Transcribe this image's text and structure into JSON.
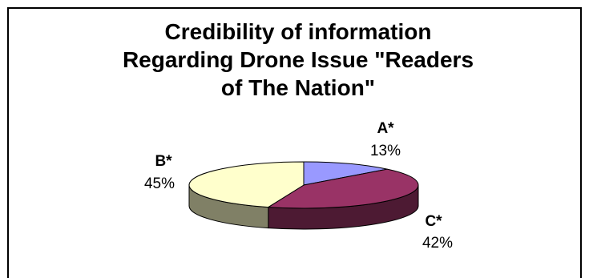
{
  "chart_data": {
    "type": "pie",
    "title_lines": [
      "Credibility of information",
      "Regarding Drone Issue \"Readers",
      "of The Nation\""
    ],
    "slices": [
      {
        "label": "A*",
        "value": 13,
        "value_label": "13%",
        "color": "#9999ff",
        "side_color": "#6b6bb3"
      },
      {
        "label": "C*",
        "value": 42,
        "value_label": "42%",
        "color": "#993366",
        "side_color": "#4d1a33"
      },
      {
        "label": "B*",
        "value": 45,
        "value_label": "45%",
        "color": "#ffffcc",
        "side_color": "#808066"
      }
    ],
    "style": "3d-pie",
    "legend": "none"
  }
}
